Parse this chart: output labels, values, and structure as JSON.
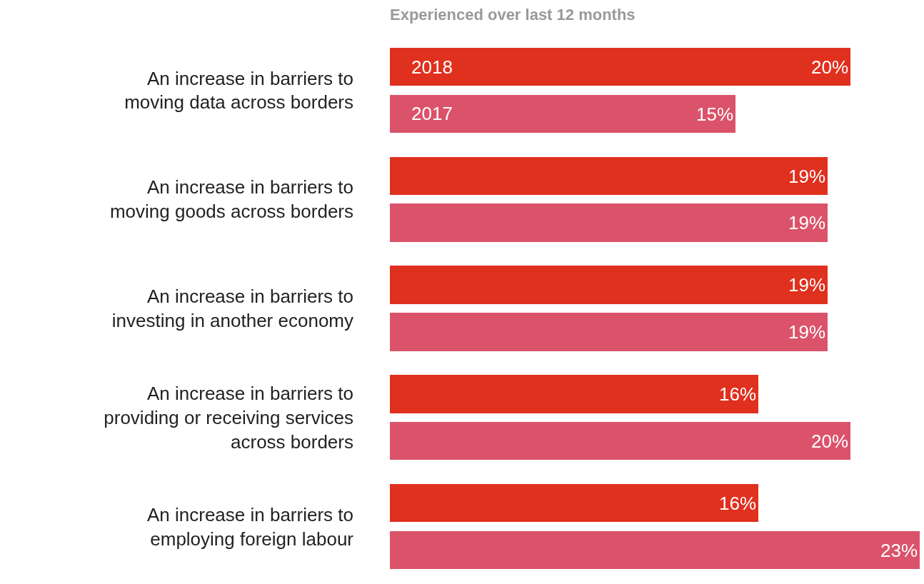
{
  "chart_data": {
    "type": "bar",
    "orientation": "horizontal",
    "title": "Experienced over last 12 months",
    "categories": [
      "An increase in barriers to moving data across borders",
      "An increase in barriers to moving goods across borders",
      "An increase in barriers to investing in another economy",
      "An increase in barriers to providing or receiving services across borders",
      "An increase in barriers to employing foreign labour"
    ],
    "series": [
      {
        "name": "2018",
        "color": "#e0301e",
        "values": [
          20,
          19,
          19,
          16,
          16
        ],
        "value_labels": [
          "20%",
          "19%",
          "19%",
          "16%",
          "16%"
        ]
      },
      {
        "name": "2017",
        "color": "#db536a",
        "values": [
          15,
          19,
          19,
          20,
          23
        ],
        "value_labels": [
          "15%",
          "19%",
          "19%",
          "20%",
          "23%"
        ]
      }
    ],
    "xlim": [
      0,
      23
    ],
    "tick_labels": "y",
    "legend": false
  }
}
